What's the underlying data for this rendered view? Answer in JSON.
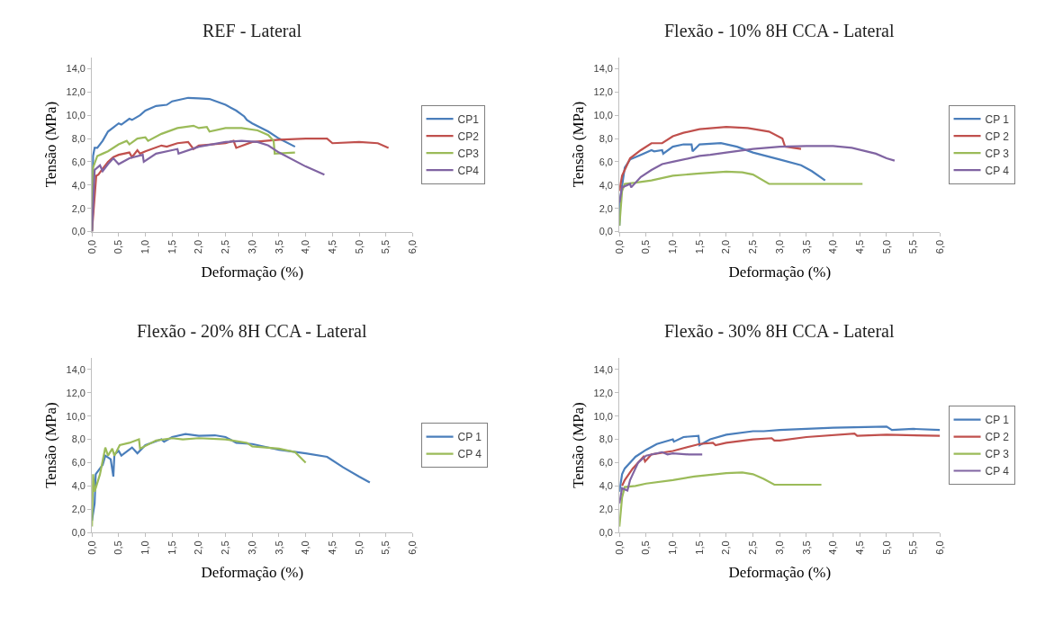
{
  "chart_data": [
    {
      "type": "line",
      "title": "REF - Lateral",
      "xlabel": "Deformação (%)",
      "ylabel": "Tensão (MPa)",
      "xlim": [
        0,
        6
      ],
      "ylim": [
        0,
        15
      ],
      "xticks": [
        {
          "value": 0,
          "label": "0,0"
        },
        {
          "value": 0.5,
          "label": "0,5"
        },
        {
          "value": 1,
          "label": "1,0"
        },
        {
          "value": 1.5,
          "label": "1,5"
        },
        {
          "value": 2,
          "label": "2,0"
        },
        {
          "value": 2.5,
          "label": "2,5"
        },
        {
          "value": 3,
          "label": "3,0"
        },
        {
          "value": 3.5,
          "label": "3,5"
        },
        {
          "value": 4,
          "label": "4,0"
        },
        {
          "value": 4.5,
          "label": "4,5"
        },
        {
          "value": 5,
          "label": "5,0"
        },
        {
          "value": 5.5,
          "label": "5,5"
        },
        {
          "value": 6,
          "label": "6,0"
        }
      ],
      "yticks": [
        {
          "value": 0,
          "label": "0,0"
        },
        {
          "value": 2,
          "label": "2,0"
        },
        {
          "value": 4,
          "label": "4,0"
        },
        {
          "value": 6,
          "label": "6,0"
        },
        {
          "value": 8,
          "label": "8,0"
        },
        {
          "value": 10,
          "label": "10,0"
        },
        {
          "value": 12,
          "label": "12,0"
        },
        {
          "value": 14,
          "label": "14,0"
        }
      ],
      "grid": false,
      "legend": "right",
      "marker": "none",
      "series": [
        {
          "name": "CP1",
          "color": "#4a7ebb",
          "x": [
            0,
            0.02,
            0.05,
            0.1,
            0.2,
            0.3,
            0.5,
            0.55,
            0.7,
            0.75,
            0.9,
            1.0,
            1.2,
            1.4,
            1.5,
            1.8,
            2.0,
            2.2,
            2.5,
            2.7,
            2.85,
            2.9,
            3.0,
            3.3,
            3.5,
            3.8
          ],
          "values": [
            0,
            6.5,
            7.2,
            7.2,
            7.8,
            8.6,
            9.3,
            9.2,
            9.7,
            9.6,
            10.0,
            10.4,
            10.8,
            10.9,
            11.2,
            11.5,
            11.45,
            11.4,
            10.9,
            10.4,
            9.9,
            9.6,
            9.3,
            8.6,
            8.0,
            7.3
          ]
        },
        {
          "name": "CP2",
          "color": "#c0504d",
          "x": [
            0,
            0.05,
            0.08,
            0.12,
            0.2,
            0.3,
            0.4,
            0.5,
            0.7,
            0.75,
            0.85,
            0.9,
            1.0,
            1.3,
            1.4,
            1.6,
            1.8,
            1.9,
            2.0,
            2.5,
            2.65,
            2.7,
            3.0,
            3.5,
            4.0,
            4.4,
            4.5,
            5.0,
            5.35,
            5.55
          ],
          "values": [
            0,
            3.0,
            4.8,
            4.9,
            5.4,
            6.0,
            6.4,
            6.6,
            6.8,
            6.4,
            7.0,
            6.7,
            6.9,
            7.4,
            7.3,
            7.6,
            7.7,
            7.1,
            7.4,
            7.6,
            7.8,
            7.2,
            7.7,
            7.9,
            8.0,
            8.0,
            7.6,
            7.7,
            7.6,
            7.2
          ]
        },
        {
          "name": "CP3",
          "color": "#9bbb59",
          "x": [
            0,
            0.02,
            0.1,
            0.2,
            0.3,
            0.5,
            0.65,
            0.7,
            0.85,
            1.0,
            1.05,
            1.3,
            1.6,
            1.9,
            2.0,
            2.15,
            2.2,
            2.5,
            2.8,
            3.1,
            3.3,
            3.4,
            3.42,
            3.8
          ],
          "values": [
            0,
            5.5,
            6.5,
            6.7,
            6.9,
            7.5,
            7.8,
            7.5,
            8.0,
            8.1,
            7.8,
            8.4,
            8.9,
            9.1,
            8.9,
            9.0,
            8.6,
            8.9,
            8.9,
            8.7,
            8.3,
            7.8,
            6.7,
            6.8
          ]
        },
        {
          "name": "CP4",
          "color": "#8064a2",
          "x": [
            0,
            0.05,
            0.15,
            0.2,
            0.3,
            0.4,
            0.5,
            0.7,
            0.95,
            0.97,
            1.2,
            1.5,
            1.6,
            1.62,
            2.0,
            2.5,
            2.8,
            3.1,
            3.3,
            3.5,
            4.0,
            4.35
          ],
          "values": [
            0,
            5.3,
            5.7,
            5.2,
            5.8,
            6.3,
            5.8,
            6.3,
            6.6,
            6.0,
            6.7,
            7.0,
            7.1,
            6.7,
            7.3,
            7.7,
            7.8,
            7.7,
            7.4,
            6.8,
            5.6,
            4.9
          ]
        }
      ]
    },
    {
      "type": "line",
      "title": "Flexão - 10% 8H CCA - Lateral",
      "xlabel": "Deformação (%)",
      "ylabel": "Tensão (MPa)",
      "xlim": [
        0,
        6
      ],
      "ylim": [
        0,
        15
      ],
      "xticks": [
        {
          "value": 0,
          "label": "0,0"
        },
        {
          "value": 0.5,
          "label": "0,5"
        },
        {
          "value": 1,
          "label": "1,0"
        },
        {
          "value": 1.5,
          "label": "1,5"
        },
        {
          "value": 2,
          "label": "2,0"
        },
        {
          "value": 2.5,
          "label": "2,5"
        },
        {
          "value": 3,
          "label": "3,0"
        },
        {
          "value": 3.5,
          "label": "3,5"
        },
        {
          "value": 4,
          "label": "4,0"
        },
        {
          "value": 4.5,
          "label": "4,5"
        },
        {
          "value": 5,
          "label": "5,0"
        },
        {
          "value": 5.5,
          "label": "5,5"
        },
        {
          "value": 6,
          "label": "6,0"
        }
      ],
      "yticks": [
        {
          "value": 0,
          "label": "0,0"
        },
        {
          "value": 2,
          "label": "2,0"
        },
        {
          "value": 4,
          "label": "4,0"
        },
        {
          "value": 6,
          "label": "6,0"
        },
        {
          "value": 8,
          "label": "8,0"
        },
        {
          "value": 10,
          "label": "10,0"
        },
        {
          "value": 12,
          "label": "12,0"
        },
        {
          "value": 14,
          "label": "14,0"
        }
      ],
      "grid": false,
      "legend": "right",
      "marker": "none",
      "series": [
        {
          "name": "CP 1",
          "color": "#4a7ebb",
          "x": [
            0,
            0.02,
            0.1,
            0.2,
            0.4,
            0.6,
            0.65,
            0.8,
            0.82,
            1.0,
            1.2,
            1.35,
            1.37,
            1.5,
            1.9,
            2.2,
            2.5,
            3.0,
            3.4,
            3.6,
            3.85
          ],
          "values": [
            0.5,
            3.0,
            5.5,
            6.2,
            6.6,
            7.0,
            6.9,
            7.0,
            6.7,
            7.3,
            7.5,
            7.5,
            6.9,
            7.5,
            7.6,
            7.3,
            6.8,
            6.2,
            5.7,
            5.2,
            4.4
          ]
        },
        {
          "name": "CP 2",
          "color": "#c0504d",
          "x": [
            0,
            0.05,
            0.2,
            0.4,
            0.6,
            0.8,
            1.0,
            1.2,
            1.5,
            2.0,
            2.4,
            2.8,
            3.05,
            3.1,
            3.4
          ],
          "values": [
            3.5,
            4.8,
            6.3,
            7.0,
            7.6,
            7.6,
            8.2,
            8.5,
            8.8,
            9.0,
            8.9,
            8.6,
            8.0,
            7.3,
            7.1
          ]
        },
        {
          "name": "CP 3",
          "color": "#9bbb59",
          "x": [
            0,
            0.05,
            0.1,
            0.3,
            0.6,
            1.0,
            1.5,
            2.0,
            2.3,
            2.5,
            2.8,
            3.5,
            4.55
          ],
          "values": [
            0.5,
            3.5,
            4.1,
            4.2,
            4.4,
            4.8,
            5.0,
            5.15,
            5.1,
            4.9,
            4.1,
            4.1,
            4.1
          ]
        },
        {
          "name": "CP 4",
          "color": "#8064a2",
          "x": [
            0,
            0.05,
            0.2,
            0.22,
            0.4,
            0.6,
            0.8,
            1.0,
            1.5,
            1.7,
            2.0,
            2.5,
            3.0,
            3.5,
            4.0,
            4.35,
            4.8,
            5.0,
            5.15
          ],
          "values": [
            2.5,
            3.8,
            4.1,
            3.8,
            4.7,
            5.3,
            5.8,
            6.0,
            6.5,
            6.6,
            6.8,
            7.1,
            7.3,
            7.35,
            7.35,
            7.2,
            6.7,
            6.3,
            6.1
          ]
        }
      ]
    },
    {
      "type": "line",
      "title": "Flexão - 20% 8H CCA - Lateral",
      "xlabel": "Deformação (%)",
      "ylabel": "Tensão (MPa)",
      "xlim": [
        0,
        6
      ],
      "ylim": [
        0,
        15
      ],
      "xticks": [
        {
          "value": 0,
          "label": "0,0"
        },
        {
          "value": 0.5,
          "label": "0,5"
        },
        {
          "value": 1,
          "label": "1,0"
        },
        {
          "value": 1.5,
          "label": "1,5"
        },
        {
          "value": 2,
          "label": "2,0"
        },
        {
          "value": 2.5,
          "label": "2,5"
        },
        {
          "value": 3,
          "label": "3,0"
        },
        {
          "value": 3.5,
          "label": "3,5"
        },
        {
          "value": 4,
          "label": "4,0"
        },
        {
          "value": 4.5,
          "label": "4,5"
        },
        {
          "value": 5,
          "label": "5,0"
        },
        {
          "value": 5.5,
          "label": "5,5"
        },
        {
          "value": 6,
          "label": "6,0"
        }
      ],
      "yticks": [
        {
          "value": 0,
          "label": "0,0"
        },
        {
          "value": 2,
          "label": "2,0"
        },
        {
          "value": 4,
          "label": "4,0"
        },
        {
          "value": 6,
          "label": "6,0"
        },
        {
          "value": 8,
          "label": "8,0"
        },
        {
          "value": 10,
          "label": "10,0"
        },
        {
          "value": 12,
          "label": "12,0"
        },
        {
          "value": 14,
          "label": "14,0"
        }
      ],
      "grid": false,
      "legend": "right",
      "marker": "none",
      "series": [
        {
          "name": "CP 1",
          "color": "#4a7ebb",
          "x": [
            0,
            0.05,
            0.07,
            0.15,
            0.2,
            0.25,
            0.35,
            0.4,
            0.42,
            0.5,
            0.55,
            0.75,
            0.85,
            1.0,
            1.3,
            1.35,
            1.5,
            1.75,
            2.0,
            2.3,
            2.5,
            2.7,
            3.0,
            3.5,
            4.0,
            4.4,
            4.7,
            5.0,
            5.2
          ],
          "values": [
            1.0,
            2.5,
            5.0,
            5.5,
            5.8,
            6.6,
            6.3,
            4.8,
            6.7,
            7.0,
            6.6,
            7.3,
            6.8,
            7.5,
            8.0,
            7.8,
            8.2,
            8.45,
            8.3,
            8.35,
            8.2,
            7.7,
            7.6,
            7.1,
            6.8,
            6.5,
            5.6,
            4.8,
            4.3
          ]
        },
        {
          "name": "CP 4",
          "color": "#9bbb59",
          "x": [
            0,
            0.02,
            0.05,
            0.15,
            0.25,
            0.3,
            0.38,
            0.42,
            0.52,
            0.7,
            0.88,
            0.9,
            1.2,
            1.5,
            1.7,
            2.0,
            2.5,
            2.9,
            3.0,
            3.5,
            3.8,
            4.0
          ],
          "values": [
            0.5,
            5.0,
            3.5,
            5.0,
            7.3,
            6.6,
            7.2,
            6.6,
            7.5,
            7.7,
            8.0,
            7.2,
            7.9,
            8.1,
            8.0,
            8.1,
            8.0,
            7.7,
            7.4,
            7.2,
            6.9,
            6.0
          ]
        }
      ]
    },
    {
      "type": "line",
      "title": "Flexão - 30% 8H CCA - Lateral",
      "xlabel": "Deformação (%)",
      "ylabel": "Tensão (MPa)",
      "xlim": [
        0,
        6
      ],
      "ylim": [
        0,
        15
      ],
      "xticks": [
        {
          "value": 0,
          "label": "0,0"
        },
        {
          "value": 0.5,
          "label": "0,5"
        },
        {
          "value": 1,
          "label": "1,0"
        },
        {
          "value": 1.5,
          "label": "1,5"
        },
        {
          "value": 2,
          "label": "2,0"
        },
        {
          "value": 2.5,
          "label": "2,5"
        },
        {
          "value": 3,
          "label": "3,0"
        },
        {
          "value": 3.5,
          "label": "3,5"
        },
        {
          "value": 4,
          "label": "4,0"
        },
        {
          "value": 4.5,
          "label": "4,5"
        },
        {
          "value": 5,
          "label": "5,0"
        },
        {
          "value": 5.5,
          "label": "5,5"
        },
        {
          "value": 6,
          "label": "6,0"
        }
      ],
      "yticks": [
        {
          "value": 0,
          "label": "0,0"
        },
        {
          "value": 2,
          "label": "2,0"
        },
        {
          "value": 4,
          "label": "4,0"
        },
        {
          "value": 6,
          "label": "6,0"
        },
        {
          "value": 8,
          "label": "8,0"
        },
        {
          "value": 10,
          "label": "10,0"
        },
        {
          "value": 12,
          "label": "12,0"
        },
        {
          "value": 14,
          "label": "14,0"
        }
      ],
      "grid": false,
      "legend": "right",
      "marker": "none",
      "series": [
        {
          "name": "CP 1",
          "color": "#4a7ebb",
          "x": [
            0,
            0.05,
            0.1,
            0.3,
            0.5,
            0.7,
            1.0,
            1.02,
            1.2,
            1.48,
            1.5,
            1.7,
            2.0,
            2.5,
            2.7,
            3.0,
            4.0,
            5.0,
            5.1,
            5.5,
            6.0
          ],
          "values": [
            3.5,
            5.0,
            5.5,
            6.5,
            7.1,
            7.6,
            8.0,
            7.8,
            8.2,
            8.3,
            7.5,
            8.0,
            8.4,
            8.7,
            8.7,
            8.8,
            9.0,
            9.1,
            8.8,
            8.9,
            8.8
          ]
        },
        {
          "name": "CP 2",
          "color": "#c0504d",
          "x": [
            0.05,
            0.1,
            0.25,
            0.45,
            0.48,
            0.6,
            1.0,
            1.5,
            1.75,
            1.8,
            2.0,
            2.5,
            2.85,
            2.9,
            3.0,
            3.5,
            4.4,
            4.45,
            5.0,
            6.0
          ],
          "values": [
            4.0,
            4.5,
            5.5,
            6.5,
            6.1,
            6.7,
            7.0,
            7.6,
            7.7,
            7.5,
            7.7,
            8.0,
            8.1,
            7.9,
            7.9,
            8.2,
            8.5,
            8.3,
            8.4,
            8.3
          ]
        },
        {
          "name": "CP 3",
          "color": "#9bbb59",
          "x": [
            0,
            0.05,
            0.1,
            0.3,
            0.5,
            1.0,
            1.4,
            2.0,
            2.3,
            2.5,
            2.7,
            2.9,
            3.5,
            3.78
          ],
          "values": [
            0.5,
            3.0,
            3.9,
            4.0,
            4.2,
            4.5,
            4.8,
            5.1,
            5.15,
            5.0,
            4.6,
            4.1,
            4.1,
            4.1
          ]
        },
        {
          "name": "CP 4",
          "color": "#8064a2",
          "x": [
            0,
            0.05,
            0.15,
            0.2,
            0.3,
            0.35,
            0.5,
            0.8,
            0.9,
            1.0,
            1.3,
            1.55
          ],
          "values": [
            2.5,
            3.8,
            3.6,
            4.5,
            5.5,
            6.0,
            6.6,
            6.9,
            6.7,
            6.8,
            6.7,
            6.7
          ]
        }
      ]
    }
  ]
}
